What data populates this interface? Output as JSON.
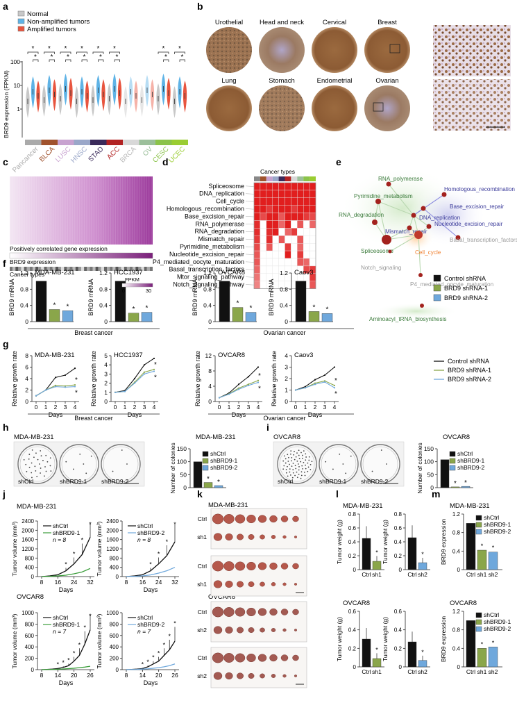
{
  "labels": {
    "a": "a",
    "b": "b",
    "c": "c",
    "d": "d",
    "e": "e",
    "f": "f",
    "g": "g",
    "h": "h",
    "i": "i",
    "j": "j",
    "k": "k",
    "l": "l",
    "m": "m"
  },
  "a": {
    "legend": [
      "Normal",
      "Non-amplified tumors",
      "Amplified tumors"
    ],
    "colors": {
      "normal": "#c8c8c8",
      "non": "#5fb3e6",
      "amp": "#e8553f"
    },
    "ylabel": "BRD9 expression (FPKM)",
    "yticks": [
      "100",
      "10",
      "1"
    ],
    "cancers": [
      "Pancancer",
      "BLCA",
      "LUSC",
      "HNSC",
      "STAD",
      "ACC",
      "BRCA",
      "OV",
      "CESC",
      "UCEC"
    ],
    "cancer_colors": [
      "#aaaaaa",
      "#a0522d",
      "#c8a2d0",
      "#9aa7c9",
      "#3a2a5a",
      "#b22222",
      "#d8d8d8",
      "#9bbf9a",
      "#8bc34a",
      "#9acd32"
    ],
    "star": "*"
  },
  "b": {
    "tissues": [
      "Urothelial",
      "Head and neck",
      "Cervical",
      "Breast",
      "Lung",
      "Stomach",
      "Endometrial",
      "Ovarian"
    ]
  },
  "c": {
    "row1": "Positively correlated gene expression",
    "row2": "BRD9 expression",
    "row3": "Cancer types",
    "scale_title": "FPKM",
    "scale_min": "0",
    "scale_max": "30"
  },
  "d": {
    "title": "Cancer types",
    "pathways": [
      "Spliceosome",
      "DNA_replication",
      "Cell_cycle",
      "Homologous_recombination",
      "Base_excision_repair",
      "RNA_polymerase",
      "RNA_degradation",
      "Mismatch_repair",
      "Pyrimidine_metabolism",
      "Nucleotide_excision_repair",
      "P4_mediated_oocyte_maturation",
      "Basal_transcription_factors",
      "Mtor_signaling_pathway",
      "Notch_signaling_pathway"
    ]
  },
  "e": {
    "nodes": [
      "RNA_polymerase",
      "Pyrimidine_metabolism",
      "Homologous_recombination",
      "Base_excision_repair",
      "RNA_degradation",
      "DNA_replication",
      "Nucleotide_excision_repair",
      "Mismatch_repair",
      "Basal_transcription_factors",
      "Spliceosome",
      "Cell_cycle",
      "Notch_signaling",
      "P4_mediated_oocyte_maturation",
      "Aminoacyl_tRNA_biosynthesis"
    ]
  },
  "f": {
    "ylabel": "BRD9 mRNA",
    "yticks": [
      "1.2",
      "0.8",
      "0.4",
      "0"
    ],
    "panels": [
      {
        "title": "MDA-MB-231",
        "values": [
          1.0,
          0.3,
          0.27
        ]
      },
      {
        "title": "HCC1937",
        "values": [
          1.0,
          0.21,
          0.23
        ]
      },
      {
        "title": "OVCAR8",
        "values": [
          1.0,
          0.35,
          0.23
        ]
      },
      {
        "title": "Caov3",
        "values": [
          1.0,
          0.25,
          0.2
        ]
      }
    ],
    "groups": [
      "Breast cancer",
      "Ovarian cancer"
    ],
    "legend": [
      "Control shRNA",
      "BRD9 shRNA-1",
      "BRD9 shRNA-2"
    ],
    "colors": [
      "#111111",
      "#8aa64a",
      "#6fa8dc"
    ],
    "star": "*"
  },
  "g": {
    "ylabel": "Relative growth rate",
    "xlabel": "Days",
    "xticks": [
      "0",
      "1",
      "2",
      "3",
      "4"
    ],
    "panels": [
      {
        "title": "MDA-MB-231",
        "yticks": [
          "8",
          "6",
          "4",
          "2",
          "0"
        ],
        "ymax": 8,
        "series": [
          [
            1,
            2,
            4.2,
            4.6,
            5.8
          ],
          [
            1,
            2,
            2.8,
            2.7,
            2.9
          ],
          [
            1,
            2,
            2.6,
            2.5,
            2.6
          ]
        ]
      },
      {
        "title": "HCC1937",
        "yticks": [
          "5",
          "4",
          "3",
          "2",
          "1",
          "0"
        ],
        "ymax": 5,
        "series": [
          [
            1,
            1.2,
            2.5,
            4.0,
            4.7
          ],
          [
            1,
            1.1,
            2.1,
            3.2,
            3.5
          ],
          [
            1,
            1.1,
            2.0,
            3.0,
            3.3
          ]
        ]
      },
      {
        "title": "OVCAR8",
        "yticks": [
          "12",
          "8",
          "4",
          "0"
        ],
        "ymax": 12,
        "series": [
          [
            1,
            2.2,
            4.5,
            6.5,
            9.0
          ],
          [
            1,
            2.0,
            3.5,
            4.5,
            5.5
          ],
          [
            1,
            1.9,
            3.2,
            4.2,
            5.0
          ]
        ]
      },
      {
        "title": "Caov3",
        "yticks": [
          "4",
          "3",
          "2",
          "1",
          "0"
        ],
        "ymax": 4,
        "series": [
          [
            1,
            1.3,
            1.9,
            2.3,
            3.0
          ],
          [
            1,
            1.2,
            1.6,
            1.8,
            1.4
          ],
          [
            1,
            1.2,
            1.5,
            1.7,
            1.2
          ]
        ]
      }
    ],
    "legend": [
      "Control shRNA",
      "BRD9 shRNA-1",
      "BRD9 shRNA-2"
    ],
    "colors": [
      "#111111",
      "#8aa64a",
      "#6fa8dc"
    ],
    "groups": [
      "Breast cancer",
      "Ovarian cancer"
    ]
  },
  "h": {
    "title": "MDA-MB-231",
    "dishes": [
      "shCtrl",
      "shBRD9-1",
      "shBRD9-2"
    ],
    "ylabel": "Number of colonies",
    "yticks": [
      "150",
      "100",
      "50",
      "0"
    ],
    "values": [
      100,
      20,
      8
    ],
    "legend": [
      "shCtrl",
      "shBRD9-1",
      "shBRD9-2"
    ]
  },
  "i": {
    "title": "OVCAR8",
    "dishes": [
      "shCtrl",
      "shBRD9-1",
      "shBRD9-2"
    ],
    "ylabel": "Number of colonies",
    "yticks": [
      "150",
      "100",
      "50",
      "0"
    ],
    "values": [
      108,
      3,
      5
    ],
    "legend": [
      "shCtrl",
      "shBRD9-1",
      "shBRD9-2"
    ]
  },
  "j": {
    "ylabel": "Tumor volume (mm³)",
    "xlabel": "Days",
    "top_title": "MDA-MB-231",
    "bottom_title": "OVCAR8",
    "top_yticks": [
      "2400",
      "2000",
      "1600",
      "1200",
      "800",
      "400",
      "0"
    ],
    "top_xticks": [
      "8",
      "16",
      "24",
      "32"
    ],
    "bottom_yticks": [
      "1000",
      "800",
      "600",
      "400",
      "200",
      "0"
    ],
    "bottom_xticks": [
      "8",
      "14",
      "20",
      "26"
    ],
    "panels": [
      {
        "ctrl": "shCtrl",
        "kd": "shBRD9-1",
        "n": "n = 8"
      },
      {
        "ctrl": "shCtrl",
        "kd": "shBRD9-2",
        "n": "n = 8"
      },
      {
        "ctrl": "shCtrl",
        "kd": "shBRD9-1",
        "n": "n = 7"
      },
      {
        "ctrl": "shCtrl",
        "kd": "shBRD9-2",
        "n": "n = 7"
      }
    ],
    "chart_data": [
      {
        "type": "line",
        "x": [
          8,
          12,
          16,
          20,
          24,
          28,
          32
        ],
        "series": [
          {
            "name": "shCtrl",
            "values": [
              0,
              30,
              80,
              250,
              550,
              950,
              1700
            ]
          },
          {
            "name": "shBRD9-1",
            "values": [
              0,
              10,
              30,
              60,
              120,
              200,
              350
            ]
          }
        ]
      },
      {
        "type": "line",
        "x": [
          8,
          12,
          16,
          20,
          24,
          28,
          32
        ],
        "series": [
          {
            "name": "shCtrl",
            "values": [
              0,
              30,
              80,
              250,
              550,
              900,
              1500
            ]
          },
          {
            "name": "shBRD9-2",
            "values": [
              0,
              10,
              30,
              70,
              150,
              250,
              400
            ]
          }
        ]
      },
      {
        "type": "line",
        "x": [
          8,
          10,
          12,
          14,
          16,
          18,
          20,
          22,
          24,
          26
        ],
        "series": [
          {
            "name": "shCtrl",
            "values": [
              0,
              5,
              10,
              20,
              40,
              70,
              150,
              250,
              450,
              700
            ]
          },
          {
            "name": "shBRD9-1",
            "values": [
              0,
              3,
              5,
              8,
              12,
              18,
              25,
              35,
              45,
              60
            ]
          }
        ]
      },
      {
        "type": "line",
        "x": [
          8,
          10,
          12,
          14,
          16,
          18,
          20,
          22,
          24,
          26
        ],
        "series": [
          {
            "name": "shCtrl",
            "values": [
              0,
              5,
              10,
              20,
              50,
              100,
              150,
              250,
              350,
              500
            ]
          },
          {
            "name": "shBRD9-2",
            "values": [
              0,
              3,
              5,
              10,
              15,
              25,
              35,
              50,
              70,
              100
            ]
          }
        ]
      }
    ]
  },
  "k": {
    "top_title": "MDA-MB-231",
    "bottom_title": "OVCAR8",
    "rows": [
      "Ctrl",
      "sh1",
      "Ctrl",
      "sh2"
    ]
  },
  "l": {
    "ylabel": "Tumor weight (g)",
    "top_title": "MDA-MB-231",
    "bottom_title": "OVCAR8",
    "panels": [
      {
        "yticks": [
          "0.8",
          "0.6",
          "0.4",
          "0.2",
          "0"
        ],
        "ymax": 0.8,
        "cats": [
          "Ctrl",
          "sh1"
        ],
        "values": [
          0.45,
          0.12
        ],
        "kd_color": "#8aa64a"
      },
      {
        "yticks": [
          "0.8",
          "0.6",
          "0.4",
          "0.2",
          "0"
        ],
        "ymax": 0.8,
        "cats": [
          "Ctrl",
          "sh2"
        ],
        "values": [
          0.46,
          0.1
        ],
        "kd_color": "#6fa8dc"
      },
      {
        "yticks": [
          "0.6",
          "0.4",
          "0.2",
          "0"
        ],
        "ymax": 0.6,
        "cats": [
          "Ctrl",
          "sh1"
        ],
        "values": [
          0.3,
          0.09
        ],
        "kd_color": "#8aa64a"
      },
      {
        "yticks": [
          "0.6",
          "0.4",
          "0.2",
          "0"
        ],
        "ymax": 0.6,
        "cats": [
          "Ctrl",
          "sh2"
        ],
        "values": [
          0.27,
          0.07
        ],
        "kd_color": "#6fa8dc"
      }
    ]
  },
  "m": {
    "ylabel": "BRD9 expression",
    "top_title": "MDA-MB-231",
    "bottom_title": "OVCAR8",
    "yticks": [
      "1.2",
      "0.8",
      "0.4",
      "0"
    ],
    "cats": [
      "Ctrl",
      "sh1",
      "sh2"
    ],
    "top_values": [
      1.0,
      0.42,
      0.38
    ],
    "bottom_values": [
      1.0,
      0.4,
      0.43
    ],
    "legend": [
      "shCtrl",
      "shBRD9-1",
      "shBRD9-2"
    ]
  }
}
